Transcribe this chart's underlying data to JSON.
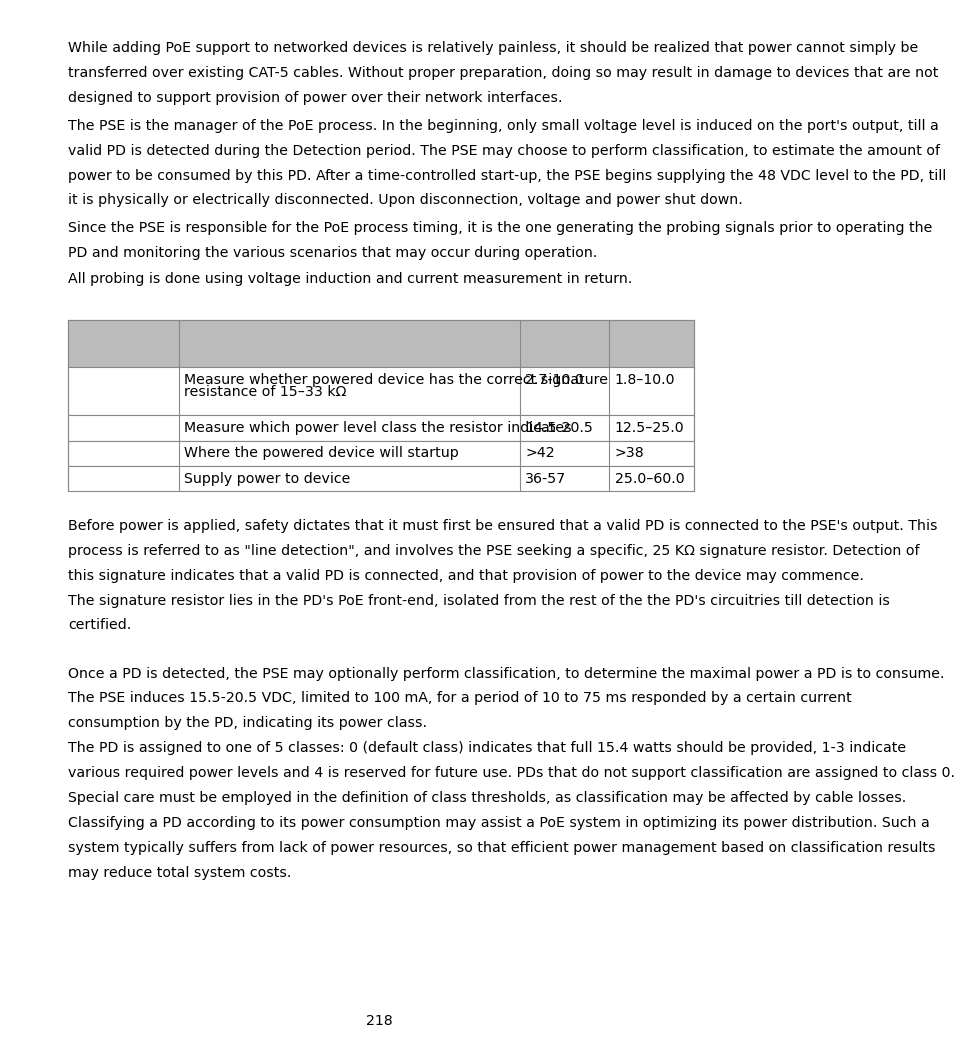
{
  "paragraph1_lines": [
    "While adding PoE support to networked devices is relatively painless, it should be realized that power cannot simply be",
    "transferred over existing CAT-5 cables. Without proper preparation, doing so may result in damage to devices that are not",
    "designed to support provision of power over their network interfaces."
  ],
  "paragraph2_lines": [
    "The PSE is the manager of the PoE process. In the beginning, only small voltage level is induced on the port's output, till a",
    "valid PD is detected during the Detection period. The PSE may choose to perform classification, to estimate the amount of",
    "power to be consumed by this PD. After a time-controlled start-up, the PSE begins supplying the 48 VDC level to the PD, till",
    "it is physically or electrically disconnected. Upon disconnection, voltage and power shut down."
  ],
  "paragraph3_lines": [
    "Since the PSE is responsible for the PoE process timing, it is the one generating the probing signals prior to operating the",
    "PD and monitoring the various scenarios that may occur during operation."
  ],
  "paragraph4_lines": [
    "All probing is done using voltage induction and current measurement in return."
  ],
  "table_row1_col2": "Measure whether powered device has the correct signature\nresistance of 15–33 kΩ",
  "table_row1_col3": "2.7-10.0",
  "table_row1_col4": "1.8–10.0",
  "table_row2_col2": "Measure which power level class the resistor indicates",
  "table_row2_col3": "14.5-20.5",
  "table_row2_col4": "12.5–25.0",
  "table_row3_col2": "Where the powered device will startup",
  "table_row3_col3": ">42",
  "table_row3_col4": ">38",
  "table_row4_col2": "Supply power to device",
  "table_row4_col3": "36-57",
  "table_row4_col4": "25.0–60.0",
  "paragraph5_lines": [
    "Before power is applied, safety dictates that it must first be ensured that a valid PD is connected to the PSE's output. This",
    "process is referred to as \"line detection\", and involves the PSE seeking a specific, 25 KΩ signature resistor. Detection of",
    "this signature indicates that a valid PD is connected, and that provision of power to the device may commence.",
    "The signature resistor lies in the PD's PoE front-end, isolated from the rest of the the PD's circuitries till detection is",
    "certified."
  ],
  "paragraph6_lines": [
    "Once a PD is detected, the PSE may optionally perform classification, to determine the maximal power a PD is to consume.",
    "The PSE induces 15.5-20.5 VDC, limited to 100 mA, for a period of 10 to 75 ms responded by a certain current",
    "consumption by the PD, indicating its power class.",
    "The PD is assigned to one of 5 classes: 0 (default class) indicates that full 15.4 watts should be provided, 1-3 indicate",
    "various required power levels and 4 is reserved for future use. PDs that do not support classification are assigned to class 0.",
    "Special care must be employed in the definition of class thresholds, as classification may be affected by cable losses.",
    "Classifying a PD according to its power consumption may assist a PoE system in optimizing its power distribution. Such a",
    "system typically suffers from lack of power resources, so that efficient power management based on classification results",
    "may reduce total system costs."
  ],
  "page_number": "218",
  "bg_color": "#ffffff",
  "text_color": "#000000",
  "table_header_bg": "#bbbbbb",
  "table_row_bg": "#ffffff",
  "table_border_color": "#888888"
}
